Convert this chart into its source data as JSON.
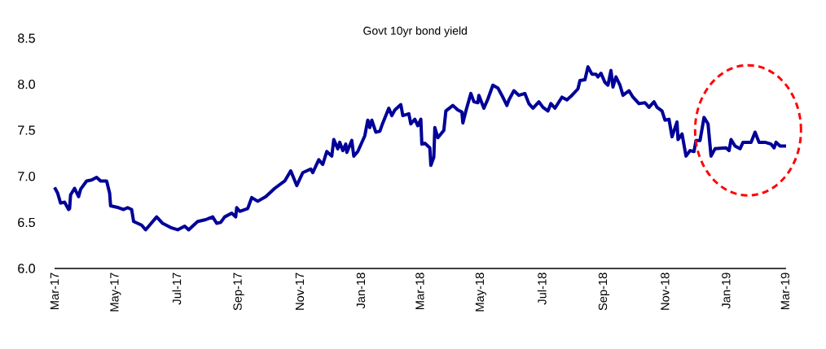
{
  "chart_data": {
    "type": "line",
    "title": "Govt 10yr bond yield",
    "x": [
      "2017-03-01",
      "2017-03-04",
      "2017-03-07",
      "2017-03-11",
      "2017-03-15",
      "2017-03-16",
      "2017-03-17",
      "2017-03-21",
      "2017-03-25",
      "2017-03-27",
      "2017-04-02",
      "2017-04-07",
      "2017-04-12",
      "2017-04-16",
      "2017-04-22",
      "2017-04-25",
      "2017-04-26",
      "2017-05-04",
      "2017-05-09",
      "2017-05-13",
      "2017-05-17",
      "2017-05-19",
      "2017-05-27",
      "2017-05-31",
      "2017-06-04",
      "2017-06-11",
      "2017-06-17",
      "2017-06-26",
      "2017-07-02",
      "2017-07-09",
      "2017-07-13",
      "2017-07-18",
      "2017-07-22",
      "2017-07-30",
      "2017-08-06",
      "2017-08-10",
      "2017-08-14",
      "2017-08-18",
      "2017-08-25",
      "2017-08-29",
      "2017-08-30",
      "2017-09-02",
      "2017-09-10",
      "2017-09-14",
      "2017-09-20",
      "2017-09-28",
      "2017-10-07",
      "2017-10-17",
      "2017-10-23",
      "2017-10-29",
      "2017-11-04",
      "2017-11-12",
      "2017-11-14",
      "2017-11-20",
      "2017-11-24",
      "2017-11-28",
      "2017-12-03",
      "2017-12-05",
      "2017-12-09",
      "2017-12-11",
      "2017-12-14",
      "2017-12-17",
      "2017-12-18",
      "2017-12-23",
      "2017-12-25",
      "2017-12-29",
      "2018-01-05",
      "2018-01-08",
      "2018-01-10",
      "2018-01-12",
      "2018-01-16",
      "2018-01-20",
      "2018-01-23",
      "2018-01-29",
      "2018-02-01",
      "2018-02-04",
      "2018-02-10",
      "2018-02-12",
      "2018-02-18",
      "2018-02-20",
      "2018-02-24",
      "2018-02-27",
      "2018-03-02",
      "2018-03-03",
      "2018-03-06",
      "2018-03-11",
      "2018-03-12",
      "2018-03-15",
      "2018-03-16",
      "2018-03-19",
      "2018-03-25",
      "2018-03-27",
      "2018-04-03",
      "2018-04-08",
      "2018-04-12",
      "2018-04-13",
      "2018-04-16",
      "2018-04-21",
      "2018-04-24",
      "2018-04-28",
      "2018-04-29",
      "2018-05-04",
      "2018-05-08",
      "2018-05-13",
      "2018-05-18",
      "2018-05-22",
      "2018-05-27",
      "2018-05-29",
      "2018-06-03",
      "2018-06-08",
      "2018-06-14",
      "2018-06-18",
      "2018-06-22",
      "2018-06-28",
      "2018-07-02",
      "2018-07-07",
      "2018-07-10",
      "2018-07-14",
      "2018-07-21",
      "2018-07-26",
      "2018-07-31",
      "2018-08-06",
      "2018-08-08",
      "2018-08-13",
      "2018-08-16",
      "2018-08-20",
      "2018-08-24",
      "2018-08-26",
      "2018-08-29",
      "2018-09-02",
      "2018-09-05",
      "2018-09-08",
      "2018-09-10",
      "2018-09-13",
      "2018-09-17",
      "2018-09-20",
      "2018-09-26",
      "2018-09-30",
      "2018-10-06",
      "2018-10-12",
      "2018-10-16",
      "2018-10-21",
      "2018-10-24",
      "2018-10-29",
      "2018-11-01",
      "2018-11-05",
      "2018-11-08",
      "2018-11-13",
      "2018-11-14",
      "2018-11-18",
      "2018-11-22",
      "2018-11-26",
      "2018-11-30",
      "2018-12-02",
      "2018-12-06",
      "2018-12-10",
      "2018-12-14",
      "2018-12-17",
      "2018-12-21",
      "2019-01-01",
      "2019-01-04",
      "2019-01-06",
      "2019-01-10",
      "2019-01-15",
      "2019-01-18",
      "2019-01-26",
      "2019-01-30",
      "2019-02-03",
      "2019-02-09",
      "2019-02-15",
      "2019-02-18",
      "2019-02-20",
      "2019-02-24",
      "2019-03-02"
    ],
    "values": [
      6.88,
      6.82,
      6.71,
      6.72,
      6.64,
      6.65,
      6.8,
      6.87,
      6.78,
      6.86,
      6.95,
      6.96,
      6.99,
      6.95,
      6.95,
      6.82,
      6.68,
      6.66,
      6.64,
      6.66,
      6.64,
      6.51,
      6.47,
      6.42,
      6.47,
      6.56,
      6.49,
      6.44,
      6.42,
      6.46,
      6.42,
      6.47,
      6.51,
      6.53,
      6.56,
      6.49,
      6.5,
      6.56,
      6.6,
      6.56,
      6.66,
      6.62,
      6.65,
      6.77,
      6.73,
      6.78,
      6.87,
      6.95,
      7.06,
      6.9,
      7.04,
      7.08,
      7.04,
      7.18,
      7.13,
      7.27,
      7.22,
      7.4,
      7.3,
      7.37,
      7.28,
      7.35,
      7.26,
      7.39,
      7.22,
      7.27,
      7.44,
      7.61,
      7.53,
      7.61,
      7.48,
      7.49,
      7.58,
      7.74,
      7.66,
      7.72,
      7.78,
      7.66,
      7.68,
      7.57,
      7.62,
      7.55,
      7.62,
      7.35,
      7.36,
      7.31,
      7.12,
      7.21,
      7.53,
      7.42,
      7.5,
      7.71,
      7.77,
      7.72,
      7.7,
      7.58,
      7.71,
      7.9,
      7.81,
      7.8,
      7.88,
      7.74,
      7.84,
      7.99,
      7.96,
      7.88,
      7.77,
      7.83,
      7.93,
      7.88,
      7.9,
      7.79,
      7.74,
      7.81,
      7.75,
      7.71,
      7.79,
      7.74,
      7.86,
      7.83,
      7.88,
      7.95,
      8.04,
      8.05,
      8.19,
      8.11,
      8.11,
      8.08,
      8.12,
      8.02,
      7.99,
      8.15,
      7.97,
      8.08,
      7.99,
      7.88,
      7.93,
      7.86,
      7.79,
      7.8,
      7.75,
      7.81,
      7.75,
      7.71,
      7.61,
      7.62,
      7.43,
      7.59,
      7.4,
      7.46,
      7.22,
      7.28,
      7.27,
      7.39,
      7.39,
      7.64,
      7.57,
      7.22,
      7.3,
      7.31,
      7.28,
      7.4,
      7.33,
      7.3,
      7.37,
      7.37,
      7.48,
      7.37,
      7.37,
      7.35,
      7.31,
      7.37,
      7.33,
      7.33
    ],
    "color": "#000099",
    "line_style": "solid",
    "marker": "none",
    "xlim": [
      "2017-03-01",
      "2019-03-02"
    ],
    "xticks": [
      {
        "value": "2017-03-01",
        "label": "Mar-17"
      },
      {
        "value": "2017-05-01",
        "label": "May-17"
      },
      {
        "value": "2017-07-01",
        "label": "Jul-17"
      },
      {
        "value": "2017-09-01",
        "label": "Sep-17"
      },
      {
        "value": "2017-11-01",
        "label": "Nov-17"
      },
      {
        "value": "2018-01-01",
        "label": "Jan-18"
      },
      {
        "value": "2018-03-01",
        "label": "Mar-18"
      },
      {
        "value": "2018-05-01",
        "label": "May-18"
      },
      {
        "value": "2018-07-01",
        "label": "Jul-18"
      },
      {
        "value": "2018-09-01",
        "label": "Sep-18"
      },
      {
        "value": "2018-11-01",
        "label": "Nov-18"
      },
      {
        "value": "2019-01-01",
        "label": "Jan-19"
      },
      {
        "value": "2019-03-01",
        "label": "Mar-19"
      }
    ],
    "ylim": [
      6,
      8.5
    ],
    "yticks": [
      {
        "value": 6,
        "label": "6.0"
      },
      {
        "value": 6.5,
        "label": "6.5"
      },
      {
        "value": 7,
        "label": "7.0"
      },
      {
        "value": 7.5,
        "label": "7.5"
      },
      {
        "value": 8,
        "label": "8.0"
      },
      {
        "value": 8.5,
        "label": "8.5"
      }
    ]
  }
}
